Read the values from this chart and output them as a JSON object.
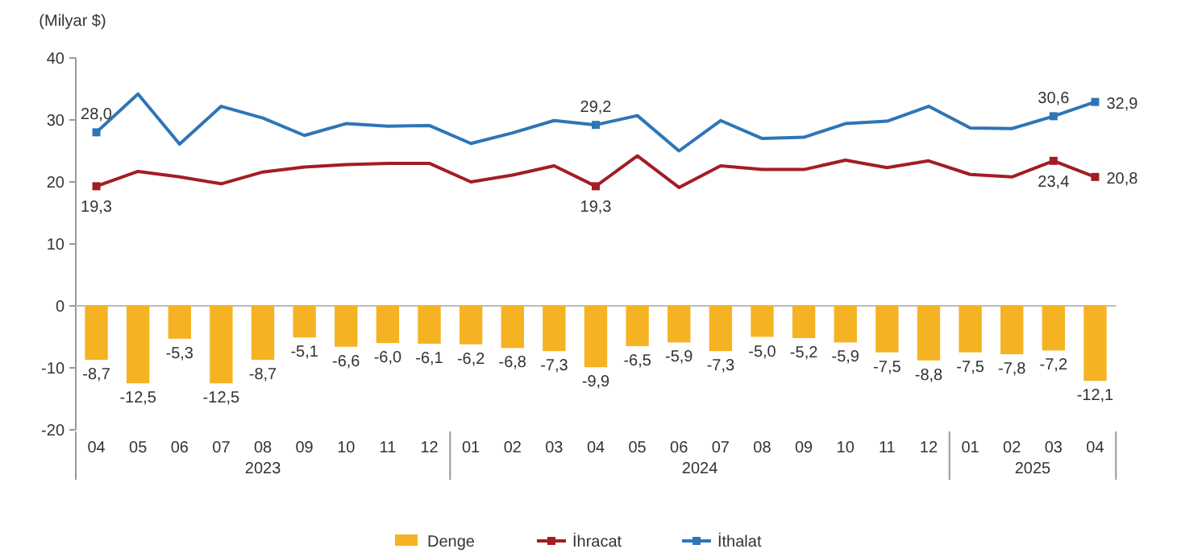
{
  "chart_data": {
    "type": "bar",
    "ylabel": "(Milyar $)",
    "categories": [
      "04",
      "05",
      "06",
      "07",
      "08",
      "09",
      "10",
      "11",
      "12",
      "01",
      "02",
      "03",
      "04",
      "05",
      "06",
      "07",
      "08",
      "09",
      "10",
      "11",
      "12",
      "01",
      "02",
      "03",
      "04"
    ],
    "series": [
      {
        "name": "Denge",
        "color": "#f5b323",
        "values": [
          -8.7,
          -12.5,
          -5.3,
          -12.5,
          -8.7,
          -5.1,
          -6.6,
          -6.0,
          -6.1,
          -6.2,
          -6.8,
          -7.3,
          -9.9,
          -6.5,
          -5.9,
          -7.3,
          -5.0,
          -5.2,
          -5.9,
          -7.5,
          -8.8,
          -7.5,
          -7.8,
          -7.2,
          -12.1
        ],
        "value_labels": [
          "-8,7",
          "-12,5",
          "-5,3",
          "-12,5",
          "-8,7",
          "-5,1",
          "-6,6",
          "-6,0",
          "-6,1",
          "-6,2",
          "-6,8",
          "-7,3",
          "-9,9",
          "-6,5",
          "-5,9",
          "-7,3",
          "-5,0",
          "-5,2",
          "-5,9",
          "-7,5",
          "-8,8",
          "-7,5",
          "-7,8",
          "-7,2",
          "-12,1"
        ]
      },
      {
        "name": "İhracat",
        "type": "line",
        "color": "#a31d24",
        "values": [
          19.3,
          21.7,
          20.8,
          19.7,
          21.6,
          22.4,
          22.8,
          23.0,
          23.0,
          20.0,
          21.1,
          22.6,
          19.3,
          24.2,
          19.1,
          22.6,
          22.0,
          22.0,
          23.5,
          22.3,
          23.4,
          21.2,
          20.8,
          23.4,
          20.8
        ],
        "value_labels": [
          "19,3",
          null,
          null,
          null,
          null,
          null,
          null,
          null,
          null,
          null,
          null,
          null,
          "19,3",
          null,
          null,
          null,
          null,
          null,
          null,
          null,
          null,
          null,
          null,
          "23,4",
          "20,8"
        ]
      },
      {
        "name": "İthalat",
        "type": "line",
        "color": "#2e75b6",
        "values": [
          28.0,
          34.2,
          26.1,
          32.2,
          30.3,
          27.5,
          29.4,
          29.0,
          29.1,
          26.2,
          27.9,
          29.9,
          29.2,
          30.7,
          25.0,
          29.9,
          27.0,
          27.2,
          29.4,
          29.8,
          32.2,
          28.7,
          28.6,
          30.6,
          32.9
        ],
        "value_labels": [
          "28,0",
          null,
          null,
          null,
          null,
          null,
          null,
          null,
          null,
          null,
          null,
          null,
          "29,2",
          null,
          null,
          null,
          null,
          null,
          null,
          null,
          null,
          null,
          null,
          "30,6",
          "32,9"
        ]
      }
    ],
    "ylim": [
      -20,
      40
    ],
    "yticks": [
      -20,
      -10,
      0,
      10,
      20,
      30,
      40
    ],
    "legend": "bottom",
    "line_style": "solid",
    "annotations": [
      "2023",
      "2024",
      "2025"
    ]
  }
}
